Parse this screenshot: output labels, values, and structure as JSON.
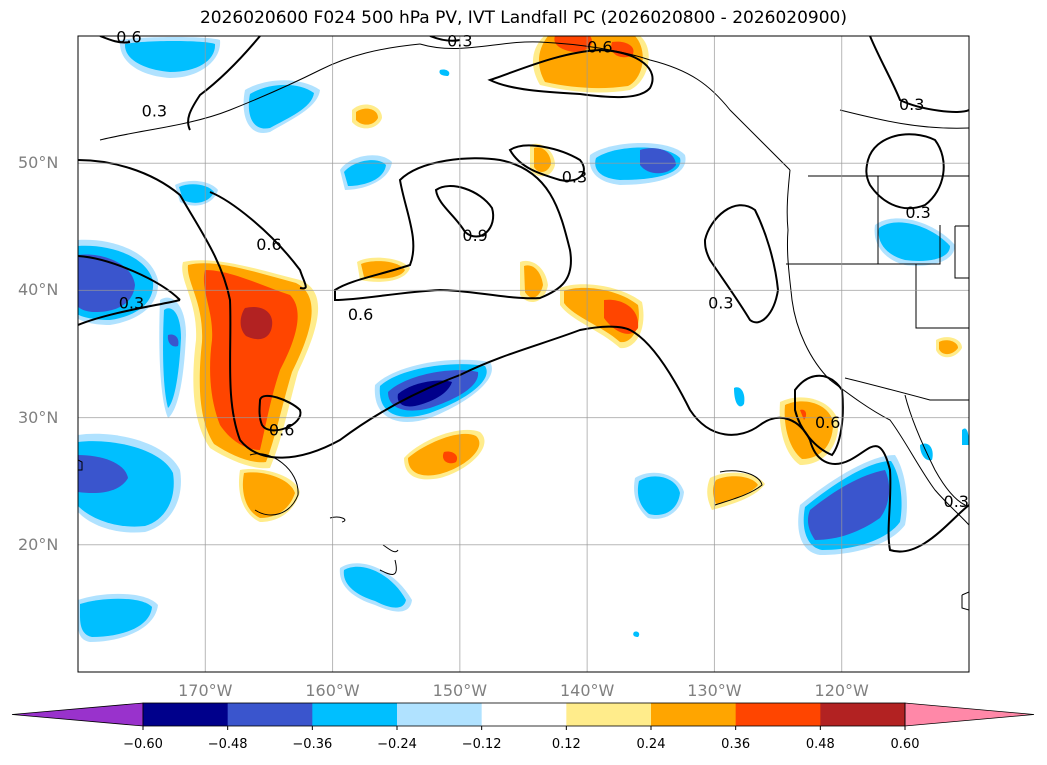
{
  "title": "2026020600 F024 500 hPa PV, IVT Landfall PC (2026020800 - 2026020900)",
  "map": {
    "lon_range": [
      -180,
      -110
    ],
    "lat_range": [
      10,
      60
    ],
    "lon_ticks": [
      {
        "value": -170,
        "label": "170°W"
      },
      {
        "value": -160,
        "label": "160°W"
      },
      {
        "value": -150,
        "label": "150°W"
      },
      {
        "value": -140,
        "label": "140°W"
      },
      {
        "value": -130,
        "label": "130°W"
      },
      {
        "value": -120,
        "label": "120°W"
      }
    ],
    "lat_ticks": [
      {
        "value": 50,
        "label": "50°N"
      },
      {
        "value": 40,
        "label": "40°N"
      },
      {
        "value": 30,
        "label": "30°N"
      },
      {
        "value": 20,
        "label": "20°N"
      }
    ],
    "contour_labels": [
      {
        "text": "0.6",
        "lon": -176.0,
        "lat": 59.8
      },
      {
        "text": "0.3",
        "lon": -150.0,
        "lat": 59.5
      },
      {
        "text": "0.6",
        "lon": -139.0,
        "lat": 59.0
      },
      {
        "text": "0.3",
        "lon": -174.0,
        "lat": 54.0
      },
      {
        "text": "0.3",
        "lon": -114.5,
        "lat": 54.5
      },
      {
        "text": "0.3",
        "lon": -141.0,
        "lat": 48.8
      },
      {
        "text": "0.9",
        "lon": -148.8,
        "lat": 44.2
      },
      {
        "text": "0.6",
        "lon": -165.0,
        "lat": 43.5
      },
      {
        "text": "0.3",
        "lon": -114.0,
        "lat": 46.0
      },
      {
        "text": "0.3",
        "lon": -175.8,
        "lat": 38.9
      },
      {
        "text": "0.3",
        "lon": -129.5,
        "lat": 38.9
      },
      {
        "text": "0.6",
        "lon": -157.8,
        "lat": 38.0
      },
      {
        "text": "0.6",
        "lon": -164.0,
        "lat": 28.9
      },
      {
        "text": "0.6",
        "lon": -121.1,
        "lat": 29.5
      },
      {
        "text": "0.3",
        "lon": -111.0,
        "lat": 23.3
      }
    ]
  },
  "colorbar": {
    "levels": [
      -0.6,
      -0.48,
      -0.36,
      -0.24,
      -0.12,
      0.12,
      0.24,
      0.36,
      0.48,
      0.6
    ],
    "tick_labels": [
      "−0.60",
      "−0.48",
      "−0.36",
      "−0.24",
      "−0.12",
      "0.12",
      "0.24",
      "0.36",
      "0.48",
      "0.60"
    ],
    "colors": {
      "under": "#9932CC",
      "bands": [
        "#00008B",
        "#3A55CD",
        "#00BFFF",
        "#B0E2FF",
        "#FFFFFF",
        "#FFEC8B",
        "#FFA500",
        "#FF4500",
        "#B22222"
      ],
      "over": "#FF88A8"
    }
  }
}
